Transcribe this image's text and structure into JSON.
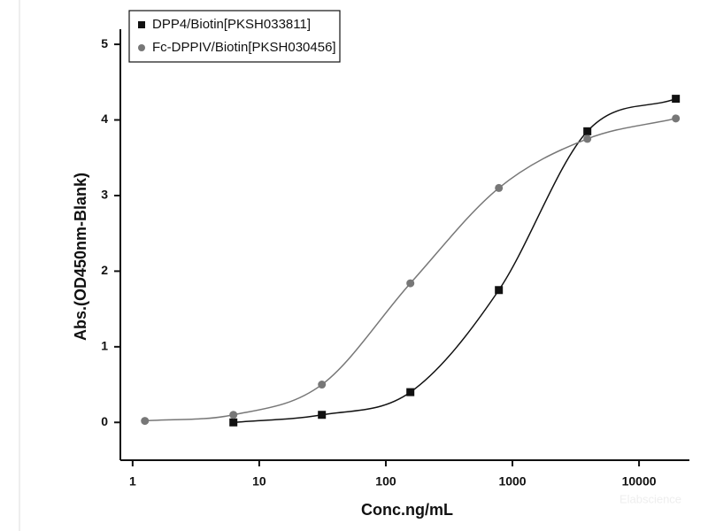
{
  "chart_data": {
    "type": "scatter",
    "x_label": "Conc.ng/mL",
    "y_label": "Abs.(OD450nm-Blank)",
    "x_scale": "log",
    "xlim": [
      0.8,
      25000
    ],
    "xticks": [
      1,
      10,
      100,
      1000,
      10000
    ],
    "ylim": [
      -0.5,
      5.2
    ],
    "yticks": [
      0,
      1,
      2,
      3,
      4,
      5
    ],
    "legend": "upper left",
    "watermark": "Elabscience",
    "series": [
      {
        "name": "DPP4/Biotin[PKSH033811]",
        "color": "#111111",
        "marker": "square",
        "x": [
          6.25,
          31.25,
          156.25,
          781.25,
          3906.25,
          19531.25
        ],
        "values": [
          0.0,
          0.1,
          0.4,
          1.75,
          3.85,
          4.28
        ]
      },
      {
        "name": "Fc-DPPIV/Biotin[PKSH030456]",
        "color": "#777777",
        "marker": "circle",
        "x": [
          1.25,
          6.25,
          31.25,
          156.25,
          781.25,
          3906.25,
          19531.25
        ],
        "values": [
          0.02,
          0.1,
          0.5,
          1.84,
          3.1,
          3.75,
          4.02
        ]
      }
    ]
  }
}
